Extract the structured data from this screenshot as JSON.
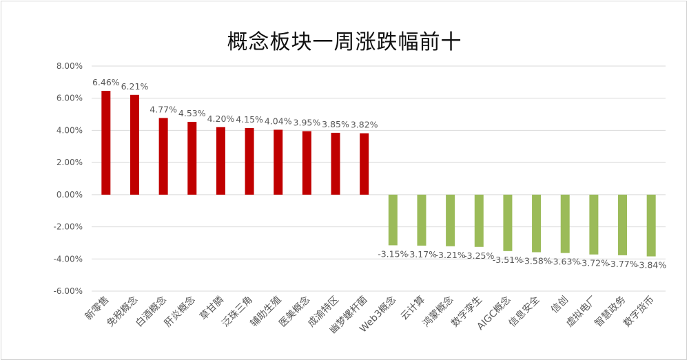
{
  "chart_data": {
    "type": "bar",
    "title": "概念板块一周涨跌幅前十",
    "categories": [
      "新零售",
      "免税概念",
      "白酒概念",
      "肝炎概念",
      "草甘膦",
      "泛珠三角",
      "辅助生殖",
      "医美概念",
      "成渝特区",
      "幽梦螺杆菌",
      "Web3概念",
      "云计算",
      "鸿蒙概念",
      "数字孪生",
      "AIGC概念",
      "信息安全",
      "信创",
      "虚拟电厂",
      "智慧政务",
      "数字货币"
    ],
    "values": [
      6.46,
      6.21,
      4.77,
      4.53,
      4.2,
      4.15,
      4.04,
      3.95,
      3.85,
      3.82,
      -3.15,
      -3.17,
      -3.21,
      -3.25,
      -3.51,
      -3.58,
      -3.63,
      -3.72,
      -3.77,
      -3.84
    ],
    "data_labels": [
      "6.46%",
      "6.21%",
      "4.77%",
      "4.53%",
      "4.20%",
      "4.15%",
      "4.04%",
      "3.95%",
      "3.85%",
      "3.82%",
      "-3.15%",
      "-3.17%",
      "-3.21%",
      "-3.25%",
      "-3.51%",
      "-3.58%",
      "-3.63%",
      "-3.72%",
      "-3.77%",
      "-3.84%"
    ],
    "y_ticks": [
      8,
      6,
      4,
      2,
      0,
      -2,
      -4,
      -6
    ],
    "y_tick_labels": [
      "8.00%",
      "6.00%",
      "4.00%",
      "2.00%",
      "0.00%",
      "-2.00%",
      "-4.00%",
      "-6.00%"
    ],
    "ylim": [
      -6,
      8
    ],
    "grid": true,
    "xlabel": "",
    "ylabel": "",
    "colors": {
      "positive": "#c00000",
      "negative": "#9bbb59",
      "grid": "#d9d9d9",
      "axis_text": "#595959"
    }
  }
}
